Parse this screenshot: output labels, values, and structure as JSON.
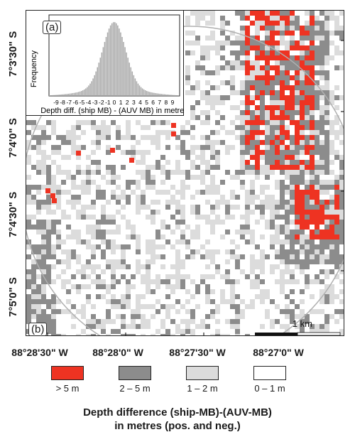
{
  "latitude_labels": [
    "7°3'30\" S",
    "7°4'0\" S",
    "7°4'30\" S",
    "7°5'0\" S"
  ],
  "longitude_labels": [
    "88°28'30\" W",
    "88°28'0\" W",
    "88°27'30\" W",
    "88°27'0\" W"
  ],
  "panel_a_label": "(a)",
  "panel_b_label": "(b)",
  "histogram": {
    "ylabel": "Frequency",
    "xlabel": "Depth diff. (ship MB) - (AUV MB) in metres",
    "tick_labels": [
      "-9",
      "-8",
      "-7",
      "-6",
      "-5",
      "-4",
      "-3",
      "-2",
      "-1",
      "0",
      "1",
      "2",
      "3",
      "4",
      "5",
      "6",
      "7",
      "8",
      "9"
    ],
    "bar_color": "#a9a9a9"
  },
  "scale_bar": {
    "label": "1 km"
  },
  "legend": {
    "items": [
      {
        "label": "> 5 m",
        "color": "#ee3322"
      },
      {
        "label": "2 – 5 m",
        "color": "#8c8c8c"
      },
      {
        "label": "1 – 2 m",
        "color": "#dcdcdc"
      },
      {
        "label": "0 – 1 m",
        "color": "#ffffff"
      }
    ],
    "title_line1": "Depth difference (ship-MB)-(AUV-MB)",
    "title_line2": "in metres (pos. and neg.)"
  }
}
